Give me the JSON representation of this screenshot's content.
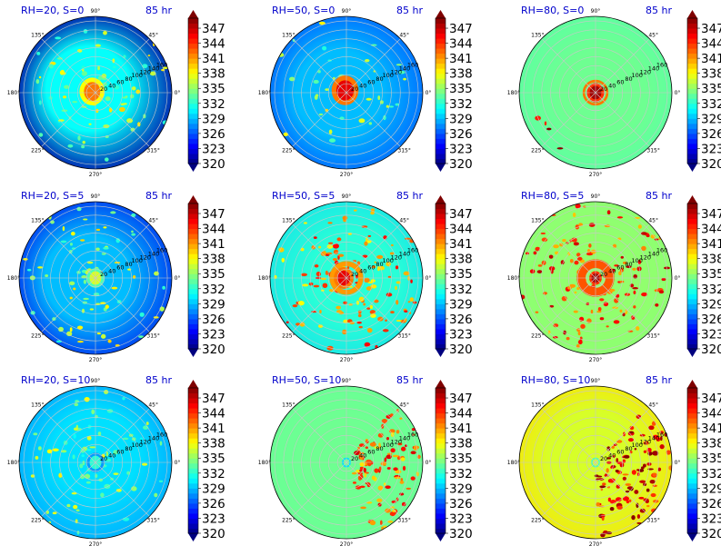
{
  "chart_data": {
    "type": "heatmap",
    "subtype": "polar-contour-grid",
    "layout": {
      "rows": 3,
      "cols": 3
    },
    "colormap": "jet",
    "colorbar": {
      "ticks": [
        320,
        323,
        326,
        329,
        332,
        335,
        338,
        341,
        344,
        347
      ],
      "tick_labels": [
        "320",
        "323",
        "326",
        "329",
        "332",
        "335",
        "338",
        "341",
        "344",
        "347"
      ],
      "range": [
        320,
        349
      ],
      "extend": "both"
    },
    "theta_ticks": [
      "0°",
      "45°",
      "90°",
      "135°",
      "180°",
      "225°",
      "270°",
      "315°"
    ],
    "r_ticks": [
      "20",
      "40",
      "60",
      "80",
      "100",
      "120",
      "140",
      "160"
    ],
    "r_max": 170,
    "panels": [
      {
        "title": "RH=20, S=0",
        "time": "85 hr",
        "background": 331,
        "edge_value": 321,
        "edge_angle": 150,
        "edge_strength": 0.8,
        "core": {
          "value": 342,
          "radius": 28,
          "offset_r": 8,
          "offset_theta": 160
        },
        "ring": null,
        "speckle": {
          "level": "moderate",
          "base": 334
        }
      },
      {
        "title": "RH=50, S=0",
        "time": "85 hr",
        "background": 329,
        "edge_value": 325,
        "edge_angle": 180,
        "edge_strength": 0.5,
        "core": {
          "value": 346,
          "radius": 30,
          "offset_r": 6,
          "offset_theta": 120
        },
        "ring": null,
        "speckle": {
          "level": "light",
          "base": 334
        }
      },
      {
        "title": "RH=80, S=0",
        "time": "85 hr",
        "background": 334,
        "edge_value": 332,
        "edge_angle": 0,
        "edge_strength": 0.2,
        "core": {
          "value": 348,
          "radius": 20,
          "offset_r": 0,
          "offset_theta": 0
        },
        "ring": {
          "value": 342,
          "radius": 26,
          "width": 4
        },
        "speckle": {
          "level": "few",
          "base": 345
        }
      },
      {
        "title": "RH=20, S=5",
        "time": "85 hr",
        "background": 329,
        "edge_value": 323,
        "edge_angle": 180,
        "edge_strength": 0.6,
        "core": {
          "value": 337,
          "radius": 20,
          "offset_r": 0,
          "offset_theta": 0
        },
        "ring": null,
        "speckle": {
          "level": "moderate",
          "base": 334
        }
      },
      {
        "title": "RH=50, S=5",
        "time": "85 hr",
        "background": 332,
        "edge_value": 329,
        "edge_angle": 0,
        "edge_strength": 0.3,
        "core": {
          "value": 346,
          "radius": 22,
          "offset_r": 6,
          "offset_theta": 180
        },
        "ring": {
          "value": 341,
          "radius": 32,
          "width": 8
        },
        "speckle": {
          "level": "heavy",
          "base": 340
        }
      },
      {
        "title": "RH=80, S=5",
        "time": "85 hr",
        "background": 335,
        "edge_value": 334,
        "edge_angle": 0,
        "edge_strength": 0.1,
        "core": {
          "value": 348,
          "radius": 14,
          "offset_r": 0,
          "offset_theta": 0
        },
        "ring": {
          "value": 343,
          "radius": 32,
          "width": 14
        },
        "speckle": {
          "level": "heavy",
          "base": 342
        }
      },
      {
        "title": "RH=20, S=10",
        "time": "85 hr",
        "background": 330,
        "edge_value": 327,
        "edge_angle": 90,
        "edge_strength": 0.4,
        "core": {
          "value": 332,
          "radius": 20,
          "offset_r": 0,
          "offset_theta": 0
        },
        "ring": null,
        "speckle": {
          "level": "moderate",
          "base": 333
        }
      },
      {
        "title": "RH=50, S=10",
        "time": "85 hr",
        "background": 334,
        "edge_value": 333,
        "edge_angle": 0,
        "edge_strength": 0.1,
        "core": {
          "value": 334,
          "radius": 10,
          "offset_r": 0,
          "offset_theta": 0
        },
        "ring": null,
        "speckle": {
          "level": "sector",
          "base": 341,
          "sector_center": -10,
          "sector_width": 60
        }
      },
      {
        "title": "RH=80, S=10",
        "time": "85 hr",
        "background": 337,
        "edge_value": 339,
        "edge_angle": 110,
        "edge_strength": 0.6,
        "core": {
          "value": 337,
          "radius": 10,
          "offset_r": 0,
          "offset_theta": 0
        },
        "ring": null,
        "speckle": {
          "level": "sector",
          "base": 344,
          "sector_center": -20,
          "sector_width": 70
        }
      }
    ]
  }
}
